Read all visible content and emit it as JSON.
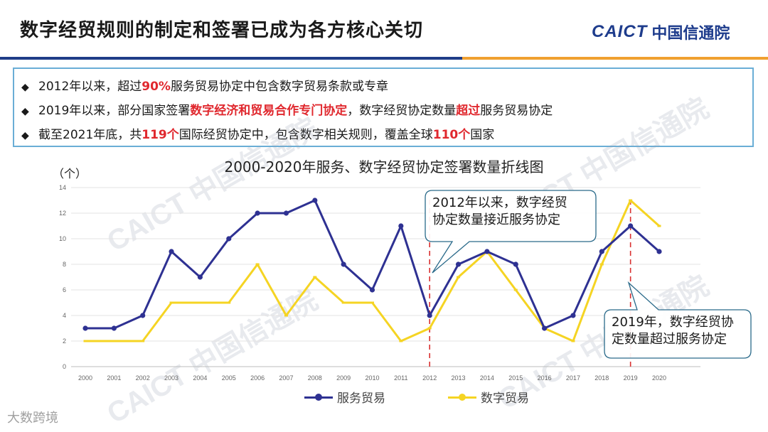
{
  "page_title": "数字经贸规则的制定和签署已成为各方核心关切",
  "logo": {
    "en": "CAICT",
    "cn": "中国信通院"
  },
  "bullets": {
    "b1": {
      "pre": "2012年以来，超过",
      "hl": "90%",
      "post": "服务贸易协定中包含数字贸易条款或专章"
    },
    "b2": {
      "pre": "2019年以来，部分国家签署",
      "hl1": "数字经济和贸易合作专门协定",
      "mid": "，数字经贸协定数量",
      "hl2": "超过",
      "post": "服务贸易协定"
    },
    "b3": {
      "pre": "截至2021年底，共",
      "hl1": "119个",
      "mid": "国际经贸协定中，包含数字相关规则，覆盖全球",
      "hl2": "110个",
      "post": "国家"
    }
  },
  "watermark": "CAICT 中国信通院",
  "footer_brand": "大数跨境",
  "chart_data": {
    "type": "line",
    "title": "2000-2020年服务、数字经贸协定签署数量折线图",
    "ylabel": "（个）",
    "xlabel": "",
    "x": [
      "2000",
      "2001",
      "2002",
      "2003",
      "2004",
      "2005",
      "2006",
      "2007",
      "2008",
      "2009",
      "2010",
      "2011",
      "2012",
      "2013",
      "2014",
      "2015",
      "2016",
      "2017",
      "2018",
      "2019",
      "2020"
    ],
    "ylim": [
      0,
      14
    ],
    "yticks": [
      0,
      2,
      4,
      6,
      8,
      10,
      12,
      14
    ],
    "grid": true,
    "legend_position": "bottom",
    "series": [
      {
        "name": "服务贸易",
        "color": "#2e3192",
        "values": [
          3,
          3,
          4,
          9,
          7,
          10,
          12,
          12,
          13,
          8,
          6,
          11,
          4,
          8,
          9,
          8,
          3,
          4,
          9,
          11,
          9
        ]
      },
      {
        "name": "数字贸易",
        "color": "#f5d423",
        "values": [
          2,
          2,
          2,
          5,
          5,
          5,
          8,
          4,
          7,
          5,
          5,
          2,
          3,
          7,
          9,
          6,
          3,
          2,
          8,
          13,
          11
        ]
      }
    ],
    "markers": [
      "2012",
      "2019"
    ],
    "annotations": [
      {
        "text_line1": "2012年以来，数字经贸",
        "text_line2": "协定数量接近服务协定"
      },
      {
        "text_line1": "2019年，数字经贸协",
        "text_line2": "定数量超过服务协定"
      }
    ]
  }
}
